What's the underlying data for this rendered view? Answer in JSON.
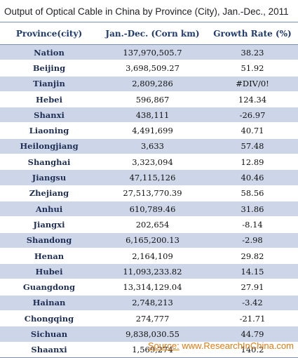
{
  "title": "Output of Optical Cable in China by Province (City), Jan.-Dec., 2011",
  "colors": {
    "band": "#cdd5e8",
    "header_text": "#1f3a6e",
    "source_text": "#e07b12"
  },
  "source": {
    "label": "Source:",
    "text": "www.ResearchInChina.com"
  },
  "chart_data": {
    "type": "table",
    "title": "Output of Optical Cable in China by Province (City), Jan.-Dec., 2011",
    "columns": [
      "Province(city)",
      "Jan.-Dec. (Corn km)",
      "Growth Rate (%)"
    ],
    "rows": [
      [
        "Nation",
        "137,970,505.7",
        "38.23"
      ],
      [
        "Beijing",
        "3,698,509.27",
        "51.92"
      ],
      [
        "Tianjin",
        "2,809,286",
        "#DIV/0!"
      ],
      [
        "Hebei",
        "596,867",
        "124.34"
      ],
      [
        "Shanxi",
        "438,111",
        "-26.97"
      ],
      [
        "Liaoning",
        "4,491,699",
        "40.71"
      ],
      [
        "Heilongjiang",
        "3,633",
        "57.48"
      ],
      [
        "Shanghai",
        "3,323,094",
        "12.89"
      ],
      [
        "Jiangsu",
        "47,115,126",
        "40.46"
      ],
      [
        "Zhejiang",
        "27,513,770.39",
        "58.56"
      ],
      [
        "Anhui",
        "610,789.46",
        "31.86"
      ],
      [
        "Jiangxi",
        "202,654",
        "-8.14"
      ],
      [
        "Shandong",
        "6,165,200.13",
        "-2.98"
      ],
      [
        "Henan",
        "2,164,109",
        "29.82"
      ],
      [
        "Hubei",
        "11,093,233.82",
        "14.15"
      ],
      [
        "Guangdong",
        "13,314,129.04",
        "27.91"
      ],
      [
        "Hainan",
        "2,748,213",
        "-3.42"
      ],
      [
        "Chongqing",
        "274,777",
        "-21.71"
      ],
      [
        "Sichuan",
        "9,838,030.55",
        "44.79"
      ],
      [
        "Shaanxi",
        "1,569,274",
        "140.2"
      ]
    ]
  }
}
